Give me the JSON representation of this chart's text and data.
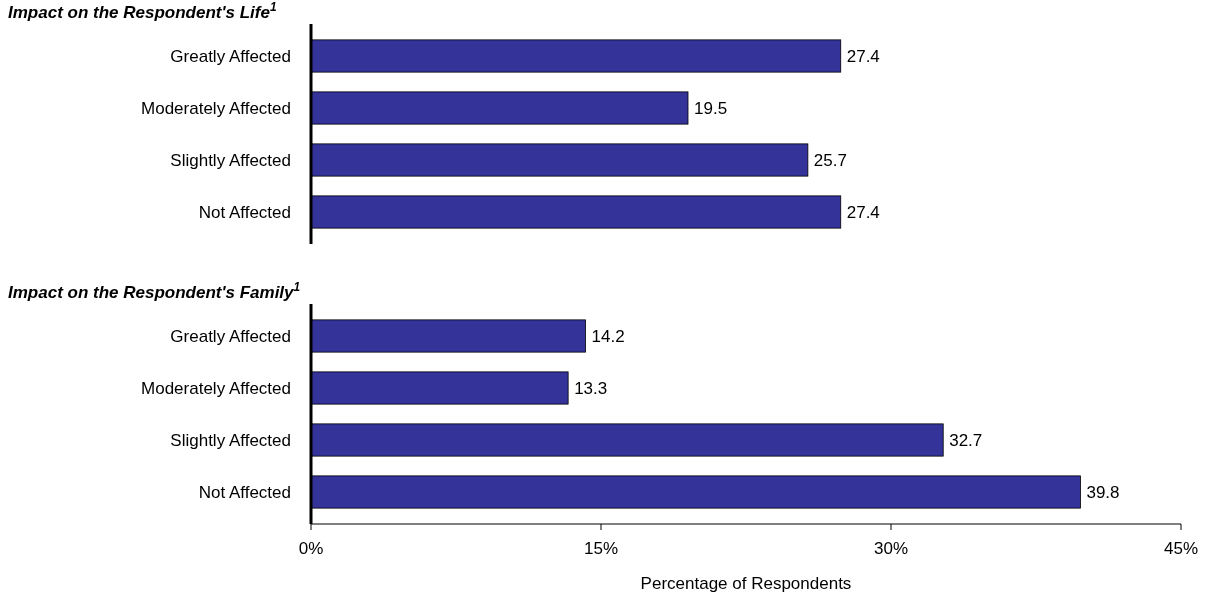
{
  "chart_data": [
    {
      "type": "bar",
      "orientation": "horizontal",
      "title": "Impact on the Respondent's Life$^{1}$",
      "categories": [
        "Greatly Affected",
        "Moderately Affected",
        "Slightly Affected",
        "Not Affected"
      ],
      "values": [
        27.4,
        19.5,
        25.7,
        27.4
      ],
      "color": "#333399",
      "xlim": [
        0,
        45
      ],
      "data_labels": true,
      "tick_labels": "y"
    },
    {
      "type": "bar",
      "orientation": "horizontal",
      "title": "Impact on the Respondent's Family$^{1}$",
      "categories": [
        "Greatly Affected",
        "Moderately Affected",
        "Slightly Affected",
        "Not Affected"
      ],
      "values": [
        14.2,
        13.3,
        32.7,
        39.8
      ],
      "color": "#333399",
      "xlim": [
        0,
        45
      ],
      "xticks": [
        {
          "value": 0,
          "label": "0%"
        },
        {
          "value": 15,
          "label": "15%"
        },
        {
          "value": 30,
          "label": "30%"
        },
        {
          "value": 45,
          "label": "45%"
        }
      ],
      "xlabel": "Percentage of Respondents",
      "data_labels": true
    }
  ]
}
